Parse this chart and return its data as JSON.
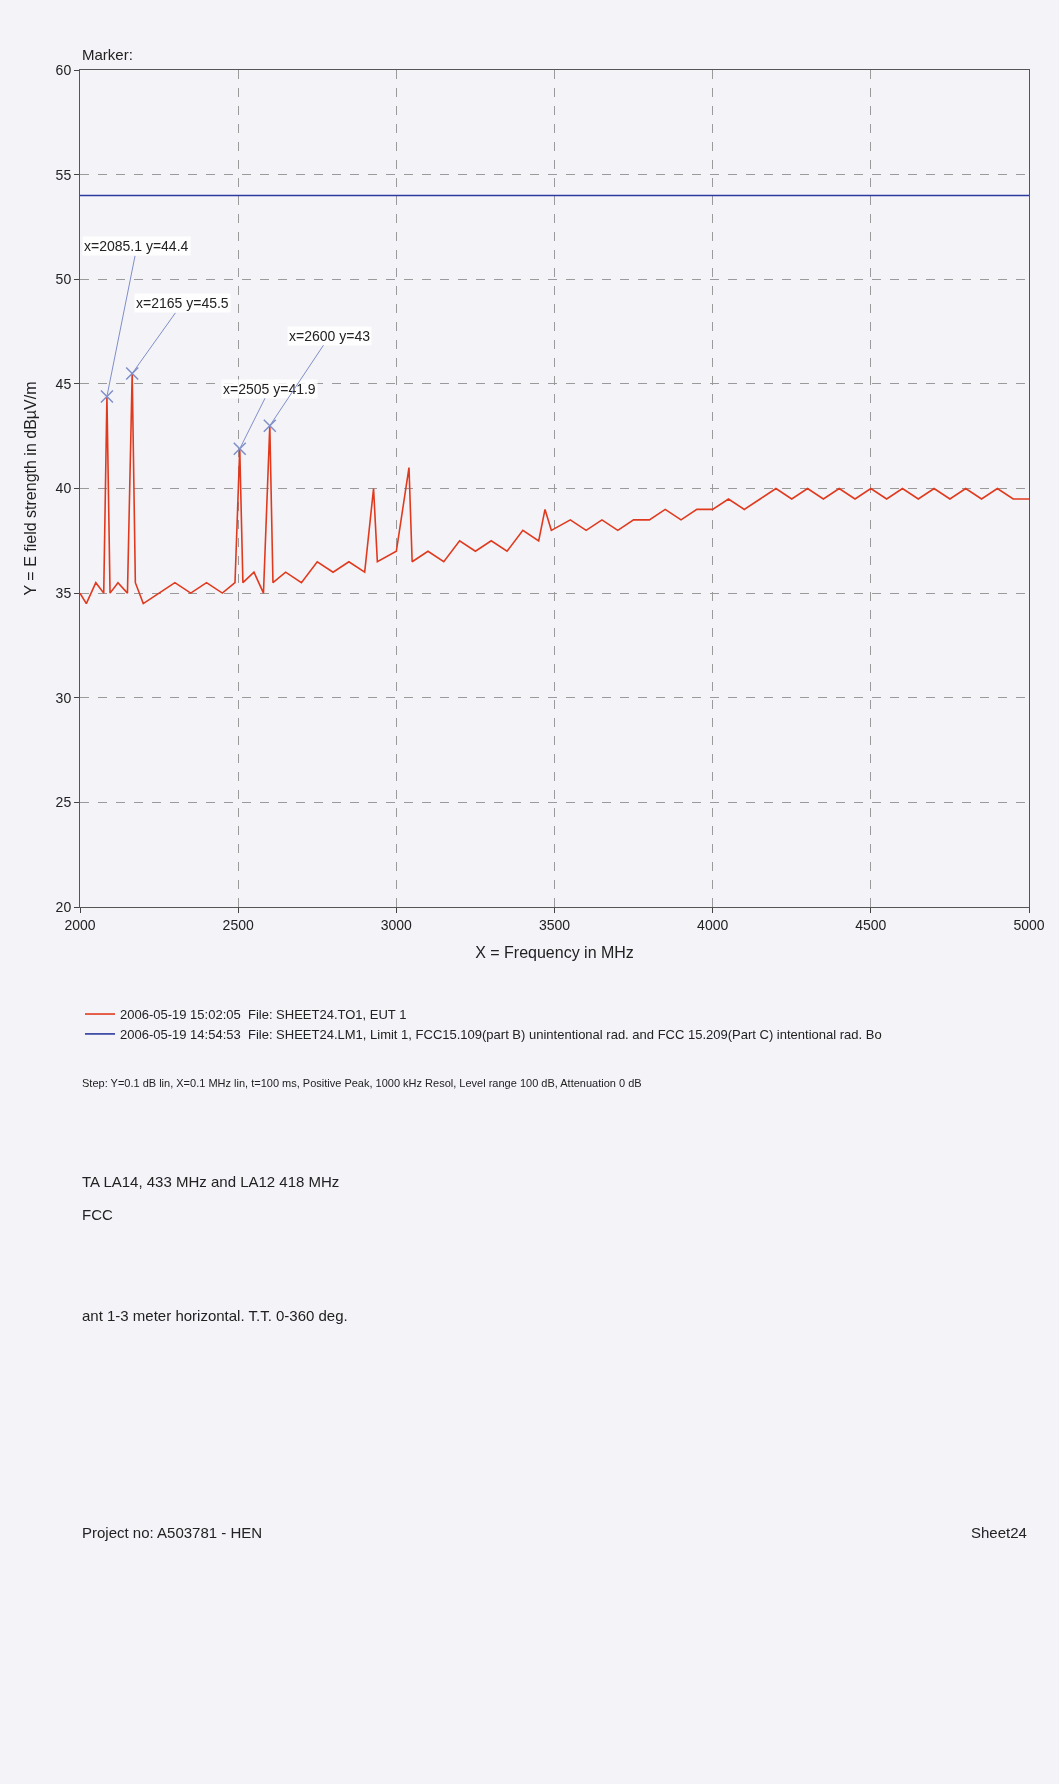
{
  "chart_data": {
    "type": "line",
    "xlabel": "X = Frequency in MHz",
    "ylabel": "Y = E field strength in dBµV/m",
    "xlim": [
      2000,
      5000
    ],
    "xticks": [
      2000,
      2500,
      3000,
      3500,
      4000,
      4500,
      5000
    ],
    "ylim": [
      20,
      60
    ],
    "yticks": [
      20,
      25,
      30,
      35,
      40,
      45,
      50,
      55,
      60
    ],
    "grid": true,
    "legend": "bottom",
    "line_style": "solid",
    "series": [
      {
        "name": "2006-05-19 15:02:05  File: SHEET24.TO1, EUT 1",
        "color": "#e03a1e",
        "x": [
          2000,
          2020,
          2050,
          2075,
          2085.1,
          2095,
          2120,
          2150,
          2165,
          2175,
          2200,
          2250,
          2300,
          2350,
          2400,
          2450,
          2490,
          2505,
          2515,
          2550,
          2580,
          2600,
          2610,
          2650,
          2700,
          2750,
          2800,
          2850,
          2900,
          2928,
          2940,
          3000,
          3040,
          3050,
          3100,
          3150,
          3200,
          3250,
          3300,
          3350,
          3400,
          3450,
          3470,
          3490,
          3550,
          3600,
          3650,
          3700,
          3750,
          3800,
          3850,
          3900,
          3950,
          4000,
          4050,
          4100,
          4150,
          4200,
          4250,
          4300,
          4350,
          4400,
          4450,
          4500,
          4550,
          4600,
          4650,
          4700,
          4750,
          4800,
          4850,
          4900,
          4950,
          5000
        ],
        "values": [
          35,
          34.5,
          35.5,
          35,
          44.4,
          35,
          35.5,
          35,
          45.5,
          35.5,
          34.5,
          35,
          35.5,
          35,
          35.5,
          35,
          35.5,
          41.9,
          35.5,
          36,
          35,
          43,
          35.5,
          36,
          35.5,
          36.5,
          36,
          36.5,
          36,
          40,
          36.5,
          37,
          41,
          36.5,
          37,
          36.5,
          37.5,
          37,
          37.5,
          37,
          38,
          37.5,
          39,
          38,
          38.5,
          38,
          38.5,
          38,
          38.5,
          38.5,
          39,
          38.5,
          39,
          39,
          39.5,
          39,
          39.5,
          40,
          39.5,
          40,
          39.5,
          40,
          39.5,
          40,
          39.5,
          40,
          39.5,
          40,
          39.5,
          40,
          39.5,
          40,
          39.5,
          39.5
        ]
      },
      {
        "name": "2006-05-19 14:54:53  File: SHEET24.LM1, Limit 1, FCC15.109(part B) unintentional rad. and FCC 15.209(Part C) intentional rad. Bo",
        "color": "#2b3a9e",
        "x": [
          2000,
          5000
        ],
        "values": [
          54,
          54
        ]
      },
      {
        "type": "scatter",
        "marker": "cross",
        "color": "#7f8fc8",
        "x": [
          2165,
          2085.1,
          2505,
          2600
        ],
        "values": [
          45.5,
          44.4,
          41.9,
          43
        ]
      }
    ],
    "annotations": [
      "Marker:",
      {
        "text": "x=2165 y=45.5",
        "x": 2165,
        "y": 45.5
      },
      {
        "text": "x=2085.1 y=44.4",
        "x": 2085.1,
        "y": 44.4
      },
      {
        "text": "x=2505 y=41.9",
        "x": 2505,
        "y": 41.9
      },
      {
        "text": "x=2600 y=43",
        "x": 2600,
        "y": 43
      },
      "Step: Y=0.1 dB lin, X=0.1 MHz lin, t=100 ms, Positive Peak, 1000 kHz Resol, Level range 100 dB, Attenuation 0 dB",
      "TA LA14, 433 MHz and LA12 418 MHz",
      "FCC",
      "ant 1-3 meter horizontal. T.T. 0-360 deg.",
      "Project no: A503781 - HEN",
      "Sheet24"
    ]
  }
}
